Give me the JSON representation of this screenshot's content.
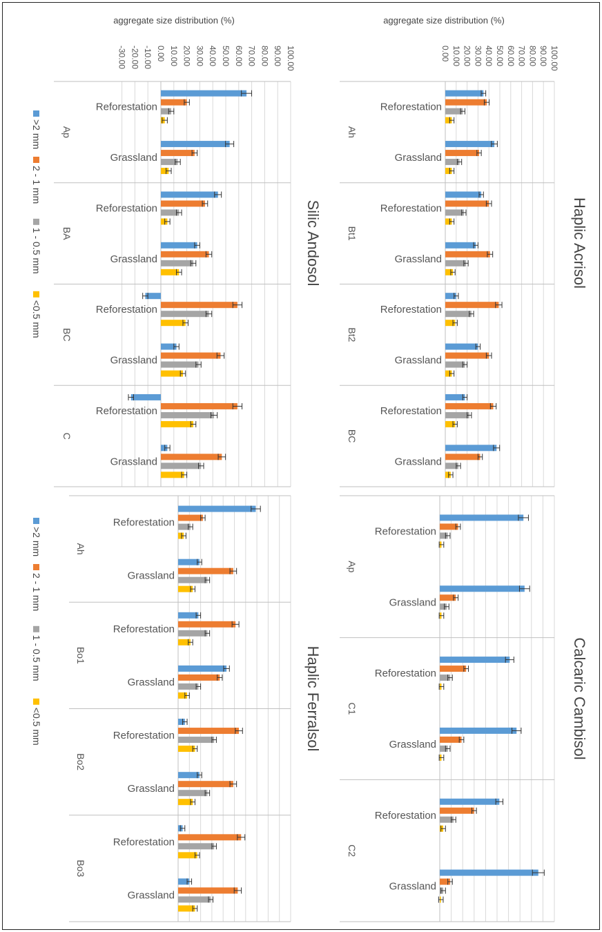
{
  "colors": {
    ">2 mm": "#5b9bd5",
    "2 - 1 mm": "#ed7d31",
    "1 - 0.5 mm": "#a5a5a5",
    "<0.5 mm": "#ffc000"
  },
  "chart_data": [
    {
      "type": "bar",
      "title": "Haplic Acrisol",
      "ylabel": "aggregate size distribution (%)",
      "ylim": [
        0,
        100
      ],
      "yticks": [
        "0.00",
        "10.00",
        "20.00",
        "30.00",
        "40.00",
        "50.00",
        "60.00",
        "70.00",
        "80.00",
        "90.00",
        "100.00"
      ],
      "groups": [
        "Ah",
        "Bt1",
        "Bt2",
        "BC"
      ],
      "categories": [
        "Reforestation",
        "Grassland",
        "Reforestation",
        "Grassland",
        "Reforestation",
        "Grassland",
        "Reforestation",
        "Grassland"
      ],
      "series": [
        {
          "name": ">2 mm",
          "values": [
            35,
            45,
            33,
            28,
            10,
            30,
            18,
            47
          ]
        },
        {
          "name": "2 - 1 mm",
          "values": [
            38,
            31,
            40,
            41,
            49,
            40,
            44,
            32
          ]
        },
        {
          "name": "1 - 0.5 mm",
          "values": [
            16,
            13,
            17,
            19,
            24,
            18,
            22,
            12
          ]
        },
        {
          "name": "<0.5 mm",
          "values": [
            6,
            6,
            6,
            7,
            9,
            6,
            9,
            5
          ]
        }
      ]
    },
    {
      "type": "bar",
      "title": "Calcaric Cambisol",
      "ylabel": "",
      "ylim": [
        0,
        100
      ],
      "yticks": [],
      "groups": [
        "Ap",
        "C1",
        "C2"
      ],
      "categories": [
        "Reforestation",
        "Grassland",
        "Reforestation",
        "Grassland",
        "Reforestation",
        "Grassland"
      ],
      "series": [
        {
          "name": ">2 mm",
          "values": [
            73,
            74,
            61,
            67,
            52,
            86
          ]
        },
        {
          "name": "2 - 1 mm",
          "values": [
            16,
            14,
            23,
            19,
            30,
            9
          ]
        },
        {
          "name": "1 - 0.5 mm",
          "values": [
            7,
            6,
            9,
            7,
            12,
            3
          ]
        },
        {
          "name": "<0.5 mm",
          "values": [
            1.5,
            1.5,
            1.5,
            1.5,
            3,
            1
          ]
        }
      ]
    },
    {
      "type": "bar",
      "title": "Silic Andosol",
      "ylabel": "aggregate size distribution (%)",
      "ylim": [
        -30,
        100
      ],
      "yticks": [
        "-30.00",
        "-20.00",
        "-10.00",
        "0.00",
        "10.00",
        "20.00",
        "30.00",
        "40.00",
        "50.00",
        "60.00",
        "70.00",
        "80.00",
        "90.00",
        "100.00"
      ],
      "groups": [
        "Ap",
        "BA",
        "BC",
        "C"
      ],
      "categories": [
        "Reforestation",
        "Grassland",
        "Reforestation",
        "Grassland",
        "Reforestation",
        "Grassland",
        "Reforestation",
        "Grassland"
      ],
      "series": [
        {
          "name": ">2 mm",
          "values": [
            66,
            53,
            44,
            28,
            -12,
            12,
            -23,
            5
          ]
        },
        {
          "name": "2 - 1 mm",
          "values": [
            20,
            26,
            34,
            37,
            59,
            46,
            59,
            47
          ]
        },
        {
          "name": "1 - 0.5 mm",
          "values": [
            8,
            13,
            14,
            25,
            37,
            29,
            41,
            31
          ]
        },
        {
          "name": "<0.5 mm",
          "values": [
            3,
            6,
            5,
            14,
            19,
            17,
            25,
            18
          ]
        }
      ]
    },
    {
      "type": "bar",
      "title": "Haplic Ferralsol",
      "ylabel": "",
      "ylim": [
        0,
        100
      ],
      "yticks": [],
      "groups": [
        "Ah",
        "Bo1",
        "Bo2",
        "Bo3"
      ],
      "categories": [
        "Reforestation",
        "Grassland",
        "Reforestation",
        "Grassland",
        "Reforestation",
        "Grassland",
        "Reforestation",
        "Grassland"
      ],
      "series": [
        {
          "name": ">2 mm",
          "values": [
            69,
            19,
            18,
            43,
            6,
            19,
            4,
            10
          ]
        },
        {
          "name": "2 - 1 mm",
          "values": [
            22,
            49,
            51,
            37,
            54,
            49,
            56,
            53
          ]
        },
        {
          "name": "1 - 0.5 mm",
          "values": [
            11,
            26,
            26,
            18,
            32,
            26,
            32,
            29
          ]
        },
        {
          "name": "<0.5 mm",
          "values": [
            5,
            13,
            11,
            8,
            15,
            13,
            17,
            15
          ]
        }
      ]
    }
  ]
}
